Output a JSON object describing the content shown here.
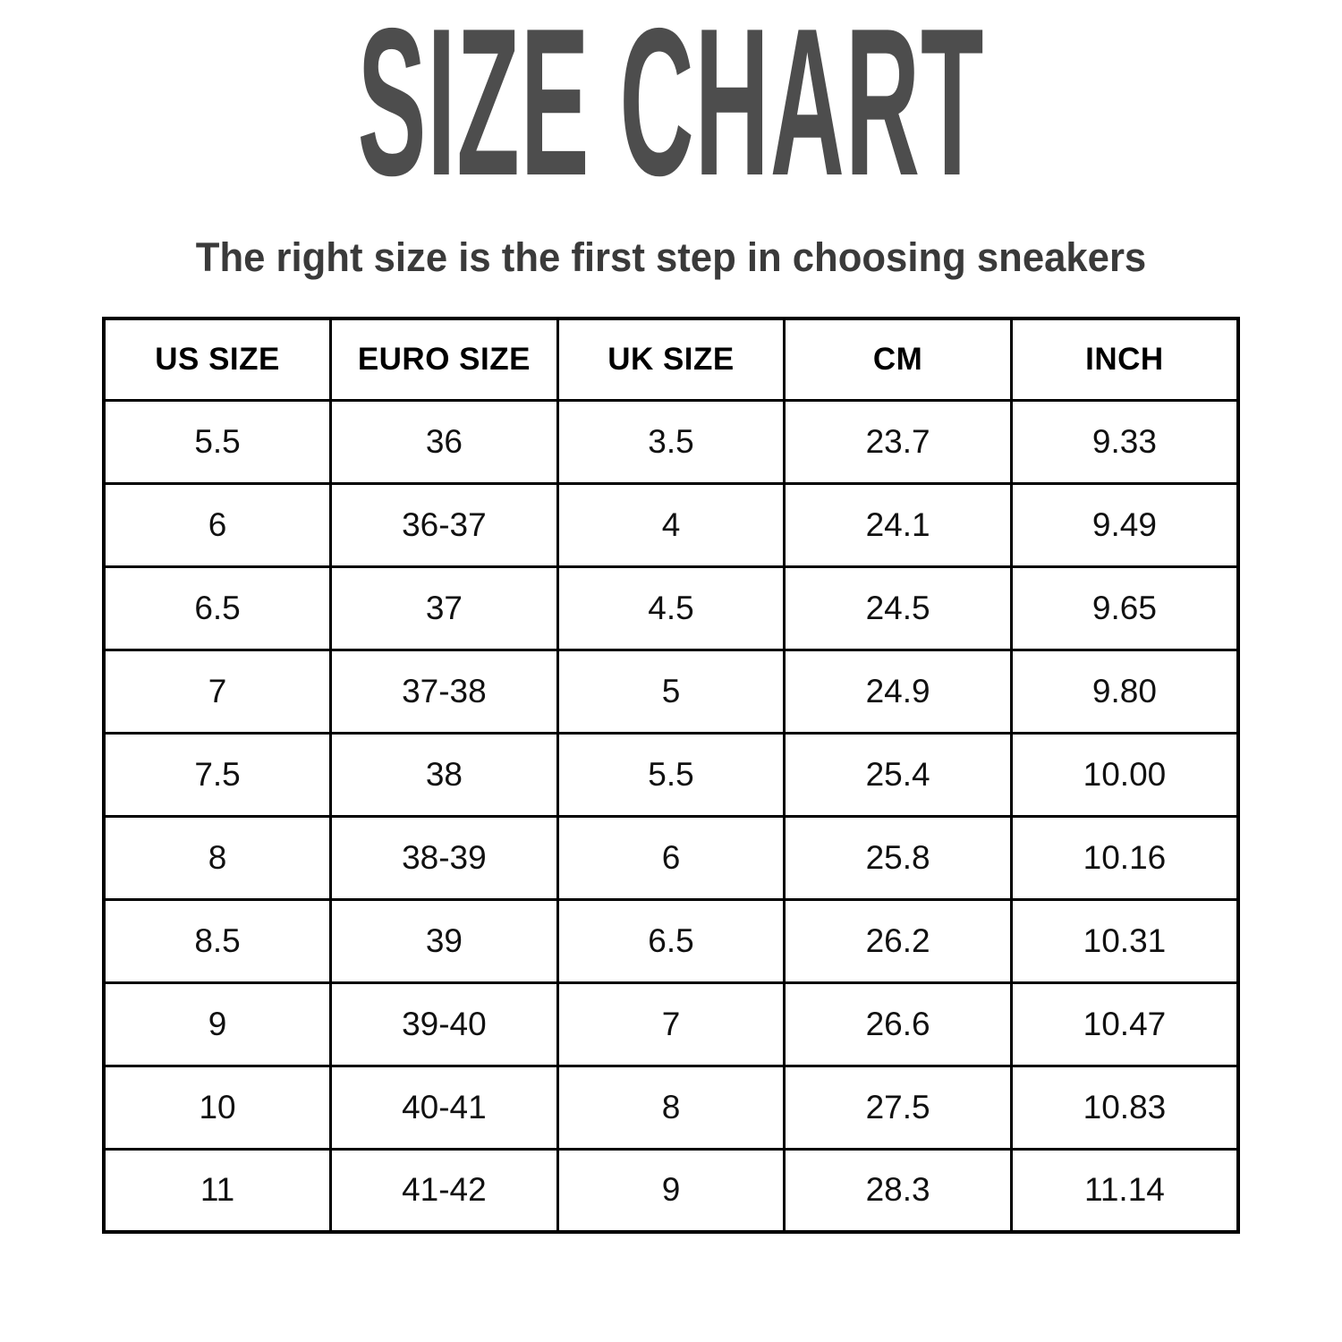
{
  "page": {
    "title": "SIZE CHART",
    "subtitle": "The right size is the first step in choosing sneakers"
  },
  "chart_data": {
    "type": "table",
    "title": "SIZE CHART",
    "subtitle": "The right size is the first step in choosing sneakers",
    "columns": [
      "US SIZE",
      "EURO SIZE",
      "UK SIZE",
      "CM",
      "INCH"
    ],
    "rows": [
      [
        "5.5",
        "36",
        "3.5",
        "23.7",
        "9.33"
      ],
      [
        "6",
        "36-37",
        "4",
        "24.1",
        "9.49"
      ],
      [
        "6.5",
        "37",
        "4.5",
        "24.5",
        "9.65"
      ],
      [
        "7",
        "37-38",
        "5",
        "24.9",
        "9.80"
      ],
      [
        "7.5",
        "38",
        "5.5",
        "25.4",
        "10.00"
      ],
      [
        "8",
        "38-39",
        "6",
        "25.8",
        "10.16"
      ],
      [
        "8.5",
        "39",
        "6.5",
        "26.2",
        "10.31"
      ],
      [
        "9",
        "39-40",
        "7",
        "26.6",
        "10.47"
      ],
      [
        "10",
        "40-41",
        "8",
        "27.5",
        "10.83"
      ],
      [
        "11",
        "41-42",
        "9",
        "28.3",
        "11.14"
      ]
    ]
  },
  "colors": {
    "title": "#4d4d4d",
    "subtitle": "#3a3a3a",
    "header_text": "#000000",
    "table_text": "#111111",
    "border": "#000000",
    "background": "#ffffff"
  }
}
